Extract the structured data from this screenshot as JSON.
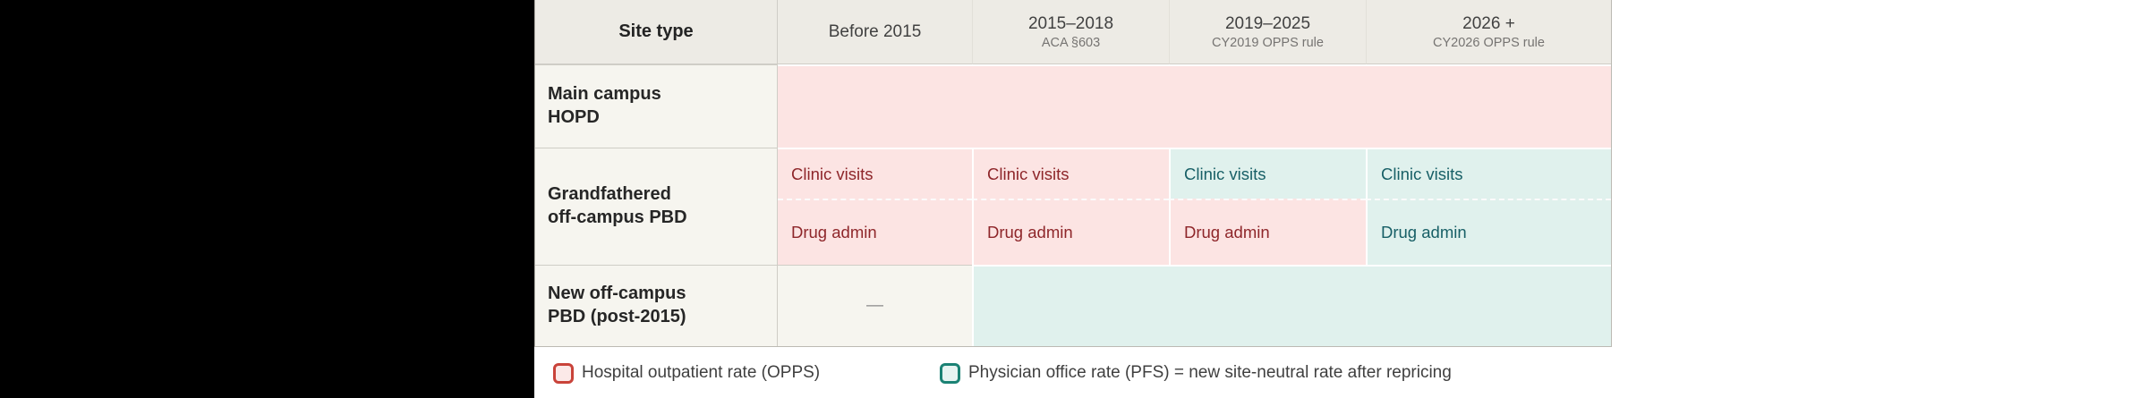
{
  "colors": {
    "opps_fill": "#fce4e3",
    "opps_text": "#8e262a",
    "pfs_fill": "#e0f1ed",
    "pfs_text": "#175f66",
    "header_bg": "#edebe5",
    "label_bg": "#f6f5ef",
    "legend_opps_border": "#c9433a",
    "legend_pfs_border": "#1b8274",
    "letterbox": "#000000"
  },
  "table": {
    "corner_label": "Site type",
    "columns": [
      {
        "era": "Before 2015",
        "rule": ""
      },
      {
        "era": "2015–2018",
        "rule": "ACA §603"
      },
      {
        "era": "2019–2025",
        "rule": "CY2019 OPPS rule"
      },
      {
        "era": "2026 +",
        "rule": "CY2026 OPPS rule"
      }
    ],
    "rows": {
      "main_campus": {
        "label": "Main campus HOPD"
      },
      "grandfathered": {
        "label": "Grandfathered off-campus PBD",
        "clinic_cells": [
          "Clinic visits",
          "Clinic visits",
          "Clinic visits",
          "Clinic visits"
        ],
        "drug_cells": [
          "Drug admin",
          "Drug admin",
          "Drug admin",
          "Drug admin"
        ]
      },
      "new_pbd": {
        "label": "New off-campus PBD (post-2015)",
        "before_2015": "—"
      }
    }
  },
  "legend": {
    "opps": "Hospital outpatient rate (OPPS)",
    "pfs": "Physician office rate (PFS) = new site-neutral rate after repricing"
  },
  "chart_data": {
    "type": "table",
    "title": "",
    "columns": [
      "Site type",
      "Before 2015",
      "2015–2018 (ACA §603)",
      "2019–2025 (CY2019 OPPS rule)",
      "2026 + (CY2026 OPPS rule)"
    ],
    "rows": [
      {
        "site_type": "Main campus HOPD",
        "cells": [
          {
            "period": "Before 2015",
            "rate": "OPPS",
            "text": ""
          },
          {
            "period": "2015–2018",
            "rate": "OPPS",
            "text": ""
          },
          {
            "period": "2019–2025",
            "rate": "OPPS",
            "text": ""
          },
          {
            "period": "2026 +",
            "rate": "OPPS",
            "text": ""
          }
        ]
      },
      {
        "site_type": "Grandfathered off-campus PBD",
        "services": [
          {
            "name": "Clinic visits",
            "cells": [
              {
                "period": "Before 2015",
                "rate": "OPPS",
                "text": "Clinic visits"
              },
              {
                "period": "2015–2018",
                "rate": "OPPS",
                "text": "Clinic visits"
              },
              {
                "period": "2019–2025",
                "rate": "PFS",
                "text": "Clinic visits"
              },
              {
                "period": "2026 +",
                "rate": "PFS",
                "text": "Clinic visits"
              }
            ]
          },
          {
            "name": "Drug admin",
            "cells": [
              {
                "period": "Before 2015",
                "rate": "OPPS",
                "text": "Drug admin"
              },
              {
                "period": "2015–2018",
                "rate": "OPPS",
                "text": "Drug admin"
              },
              {
                "period": "2019–2025",
                "rate": "OPPS",
                "text": "Drug admin"
              },
              {
                "period": "2026 +",
                "rate": "PFS",
                "text": "Drug admin"
              }
            ]
          }
        ]
      },
      {
        "site_type": "New off-campus PBD (post-2015)",
        "cells": [
          {
            "period": "Before 2015",
            "rate": "none",
            "text": "—"
          },
          {
            "period": "2015–2018 through 2026 +",
            "rate": "PFS",
            "text": ""
          }
        ]
      }
    ],
    "legend": [
      {
        "key": "OPPS",
        "label": "Hospital outpatient rate (OPPS)",
        "fill": "#fce4e3"
      },
      {
        "key": "PFS",
        "label": "Physician office rate (PFS) = new site-neutral rate after repricing",
        "fill": "#e0f1ed"
      }
    ],
    "layout_hints": {
      "legend_position": "bottom",
      "grid": "on"
    }
  }
}
